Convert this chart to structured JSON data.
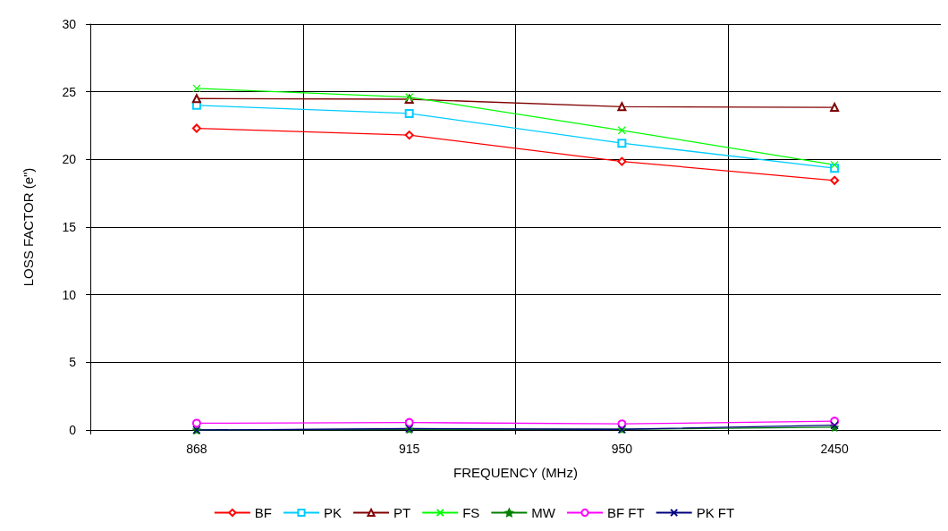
{
  "chart_data": {
    "type": "line",
    "xlabel": "FREQUENCY (MHz)",
    "ylabel": "LOSS FACTOR (e\")",
    "categories": [
      "868",
      "915",
      "950",
      "2450"
    ],
    "ylim": [
      0,
      30
    ],
    "yticks": [
      0,
      5,
      10,
      15,
      20,
      25,
      30
    ],
    "grid": true,
    "legend": "bottom",
    "series": [
      {
        "name": "BF",
        "color": "#ff0000",
        "marker": "diamond",
        "values": [
          22.3,
          21.8,
          19.85,
          18.45
        ]
      },
      {
        "name": "PK",
        "color": "#00ccff",
        "marker": "square",
        "values": [
          24.0,
          23.4,
          21.2,
          19.35
        ]
      },
      {
        "name": "PT",
        "color": "#800000",
        "marker": "triangle",
        "values": [
          24.5,
          24.45,
          23.9,
          23.85
        ]
      },
      {
        "name": "FS",
        "color": "#00ff00",
        "marker": "cross",
        "values": [
          25.25,
          24.6,
          22.15,
          19.6
        ]
      },
      {
        "name": "MW",
        "color": "#008000",
        "marker": "star",
        "values": [
          0.0,
          0.05,
          0.05,
          0.2
        ]
      },
      {
        "name": "BF FT",
        "color": "#ff00ff",
        "marker": "circle",
        "values": [
          0.5,
          0.55,
          0.45,
          0.65
        ]
      },
      {
        "name": "PK FT",
        "color": "#000080",
        "marker": "cross",
        "values": [
          0.0,
          0.1,
          0.05,
          0.35
        ]
      }
    ]
  }
}
